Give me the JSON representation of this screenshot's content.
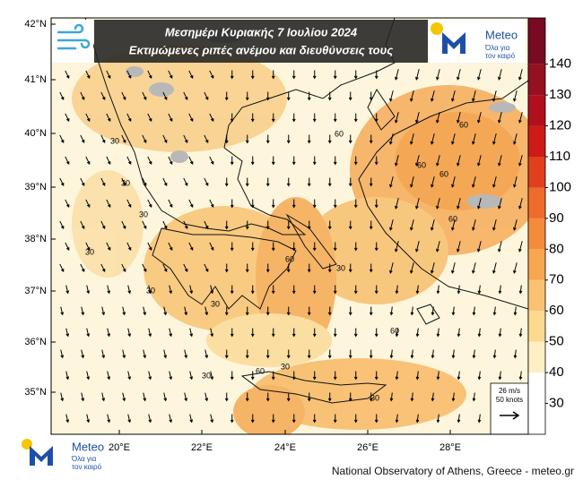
{
  "header": {
    "title_line1": "Μεσημέρι Κυριακής 7 Ιουλίου 2024",
    "title_line2": "Εκτιμώμενες ριπές ανέμου και διευθύνσεις τους"
  },
  "logo_top": {
    "name": "Meteo",
    "tagline1": "Όλα για",
    "tagline2": "τον καιρό"
  },
  "logo_bottom": {
    "name": "Meteo",
    "tagline1": "Όλα για",
    "tagline2": "τον καιρό"
  },
  "lat_labels": [
    "42°N",
    "41°N",
    "40°N",
    "39°N",
    "38°N",
    "37°N",
    "36°N",
    "35°N"
  ],
  "lon_labels": [
    "20°E",
    "22°E",
    "24°E",
    "26°E",
    "28°E"
  ],
  "colorbar": {
    "bounds": [
      20,
      40,
      50,
      60,
      70,
      80,
      90,
      100,
      110,
      120,
      130,
      140,
      155
    ],
    "colors": [
      "#ffffff",
      "#fdefc3",
      "#fbd98e",
      "#f9c273",
      "#f6a750",
      "#f38b3b",
      "#ee6b2b",
      "#e0401d",
      "#cc1c15",
      "#b0101d",
      "#951021",
      "#780a22"
    ],
    "ticks": [
      30,
      40,
      50,
      60,
      70,
      80,
      90,
      100,
      110,
      120,
      130,
      140
    ]
  },
  "vector_legend": {
    "speed": "26 m/s",
    "knots": "50 knots"
  },
  "contour_labels": [
    30,
    30,
    30,
    30,
    30,
    30,
    30,
    60,
    60,
    60,
    60,
    60,
    60,
    60,
    30,
    30,
    60,
    30
  ],
  "credit": "National Observatory of Athens, Greece - meteo.gr"
}
